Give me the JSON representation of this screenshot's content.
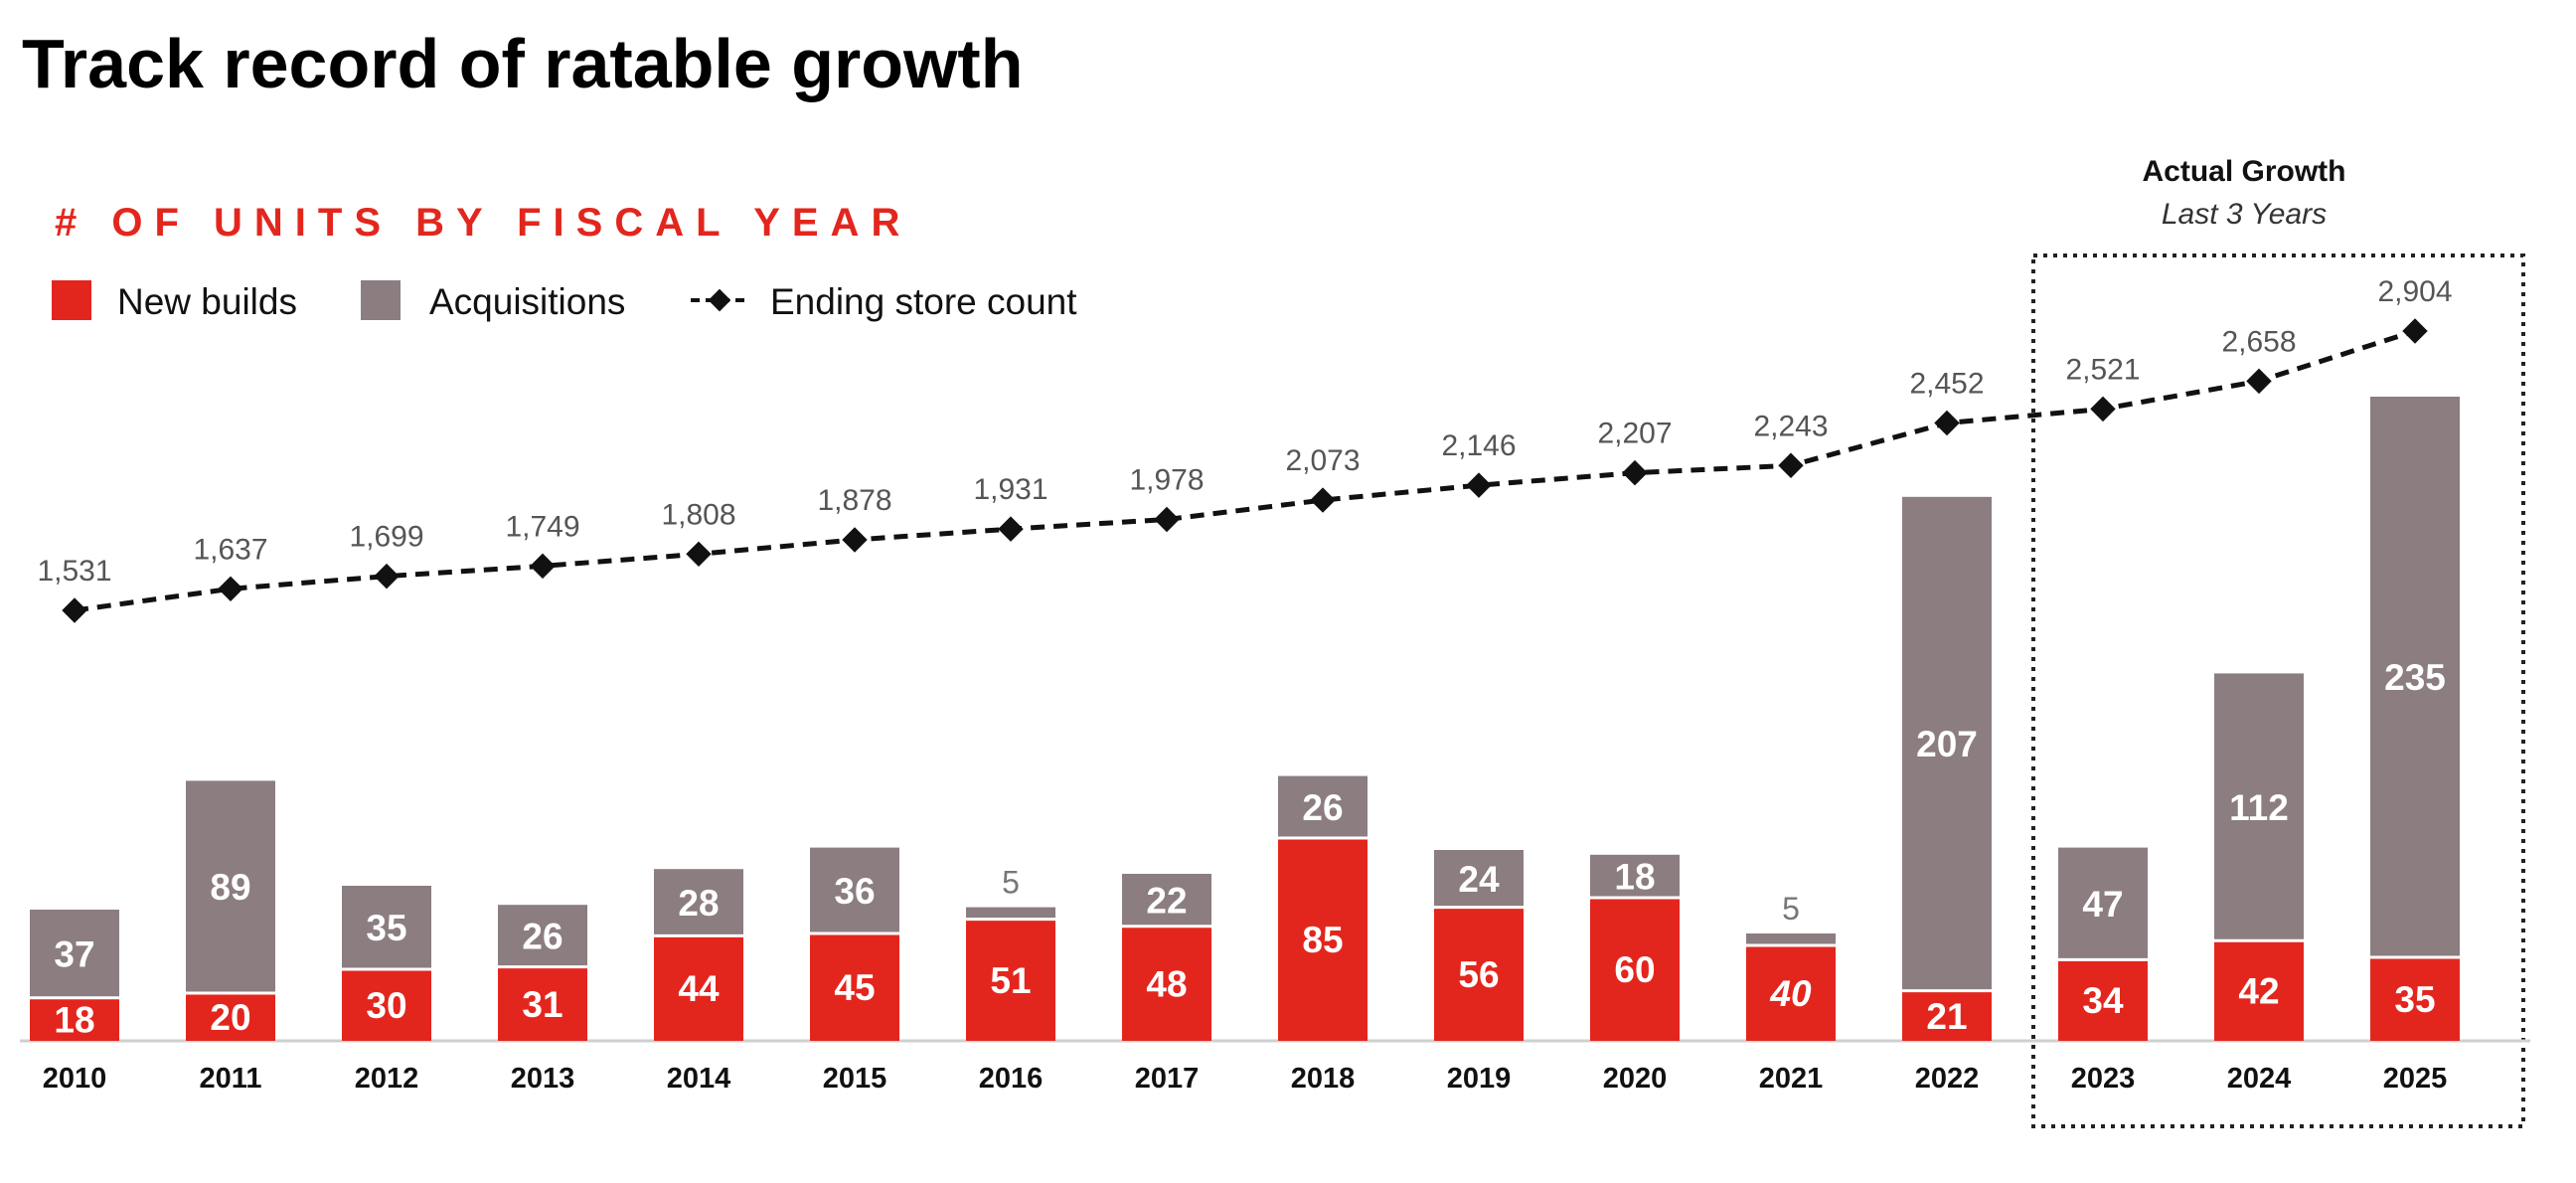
{
  "chart_data": {
    "type": "bar",
    "title": "Track record of ratable growth",
    "subtitle": "# OF UNITS BY FISCAL YEAR",
    "categories": [
      "2010",
      "2011",
      "2012",
      "2013",
      "2014",
      "2015",
      "2016",
      "2017",
      "2018",
      "2019",
      "2020",
      "2021",
      "2022",
      "2023",
      "2024",
      "2025"
    ],
    "stacked": true,
    "series": [
      {
        "name": "New builds",
        "color": "#e3261d",
        "values": [
          18,
          20,
          30,
          31,
          44,
          45,
          51,
          48,
          85,
          56,
          60,
          40,
          21,
          34,
          42,
          35
        ]
      },
      {
        "name": "Acquisitions",
        "color": "#8b7d80",
        "values": [
          37,
          89,
          35,
          26,
          28,
          36,
          5,
          22,
          26,
          24,
          18,
          5,
          207,
          47,
          112,
          235
        ]
      }
    ],
    "line_series": {
      "name": "Ending store count",
      "color": "#111111",
      "values": [
        1531,
        1637,
        1699,
        1749,
        1808,
        1878,
        1931,
        1978,
        2073,
        2146,
        2207,
        2243,
        2452,
        2521,
        2658,
        2904
      ],
      "labels": [
        "1,531",
        "1,637",
        "1,699",
        "1,749",
        "1,808",
        "1,878",
        "1,931",
        "1,978",
        "2,073",
        "2,146",
        "2,207",
        "2,243",
        "2,452",
        "2,521",
        "2,658",
        "2,904"
      ]
    },
    "highlight": {
      "title": "Actual Growth",
      "subtitle": "Last 3 Years",
      "categories": [
        "2023",
        "2024",
        "2025"
      ]
    },
    "legend_position": "top-left",
    "grid": false
  }
}
